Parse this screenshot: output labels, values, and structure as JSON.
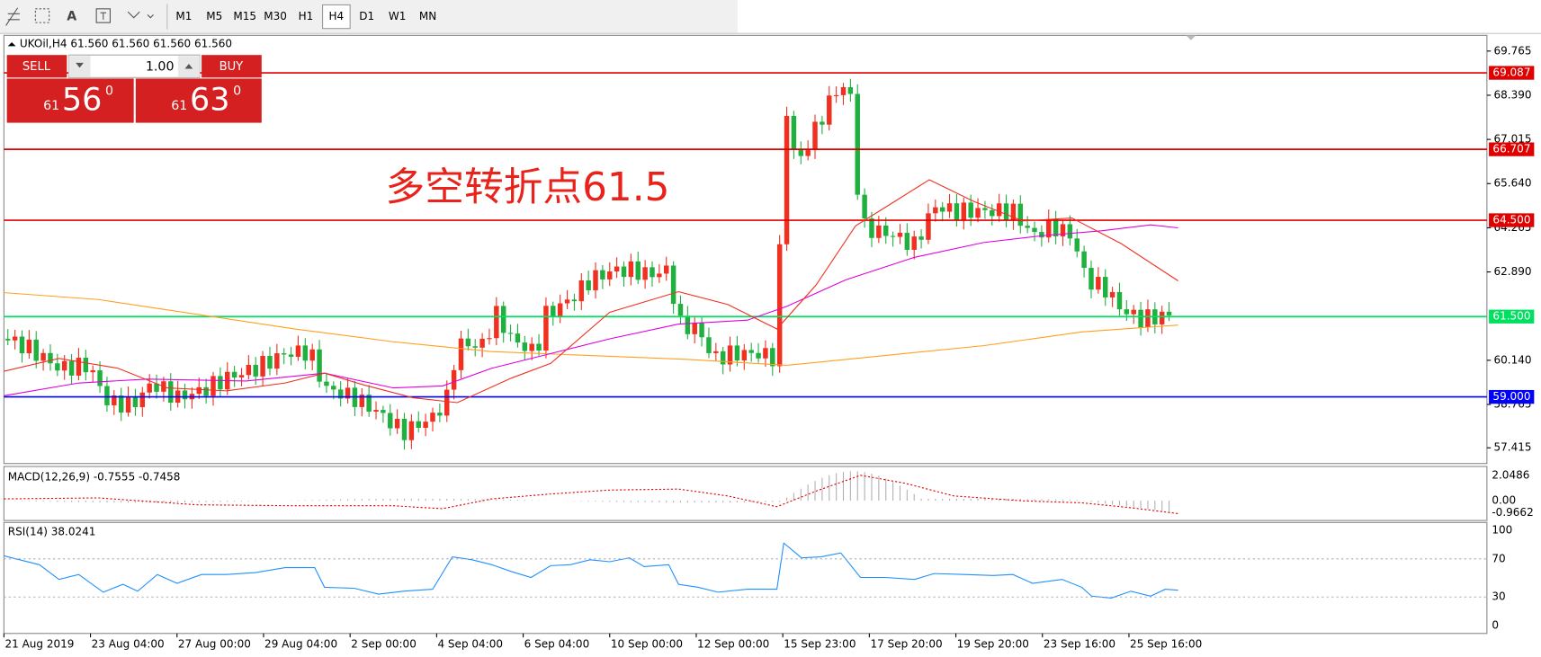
{
  "toolbar": {
    "text_tool": "A",
    "timeframes": [
      "M1",
      "M5",
      "M15",
      "M30",
      "H1",
      "H4",
      "D1",
      "W1",
      "MN"
    ],
    "active_index": 5
  },
  "chart": {
    "header": "UKOil,H4  61.560 61.560 61.560 61.560",
    "annotation": "多空转折点61.5",
    "price_ticks": [
      "69.765",
      "68.390",
      "67.015",
      "65.640",
      "64.265",
      "62.890",
      "60.140",
      "58.765",
      "57.415"
    ],
    "levels": [
      {
        "label": "69.087",
        "color": "#e00000"
      },
      {
        "label": "66.707",
        "color": "#e00000"
      },
      {
        "label": "64.500",
        "color": "#e00000"
      },
      {
        "label": "61.500",
        "color": "#00e060"
      },
      {
        "label": "59.000",
        "color": "#0000ff"
      }
    ],
    "dates": [
      "21 Aug 2019",
      "23 Aug 04:00",
      "27 Aug 00:00",
      "29 Aug 04:00",
      "2 Sep 00:00",
      "4 Sep 04:00",
      "6 Sep 04:00",
      "10 Sep 00:00",
      "12 Sep 00:00",
      "15 Sep 23:00",
      "17 Sep 20:00",
      "19 Sep 20:00",
      "23 Sep 16:00",
      "25 Sep 16:00"
    ]
  },
  "trade": {
    "sell": "SELL",
    "buy": "BUY",
    "lot": "1.00",
    "sell_price": {
      "big": "61",
      "main": "56",
      "sup": "0"
    },
    "buy_price": {
      "big": "61",
      "main": "63",
      "sup": "0"
    }
  },
  "macd": {
    "label": "MACD(12,26,9) -0.7555 -0.7458",
    "ticks": [
      "2.0486",
      "0.00",
      "-0.9662"
    ]
  },
  "rsi": {
    "label": "RSI(14) 38.0241",
    "ticks": [
      "100",
      "70",
      "30",
      "0"
    ]
  }
}
